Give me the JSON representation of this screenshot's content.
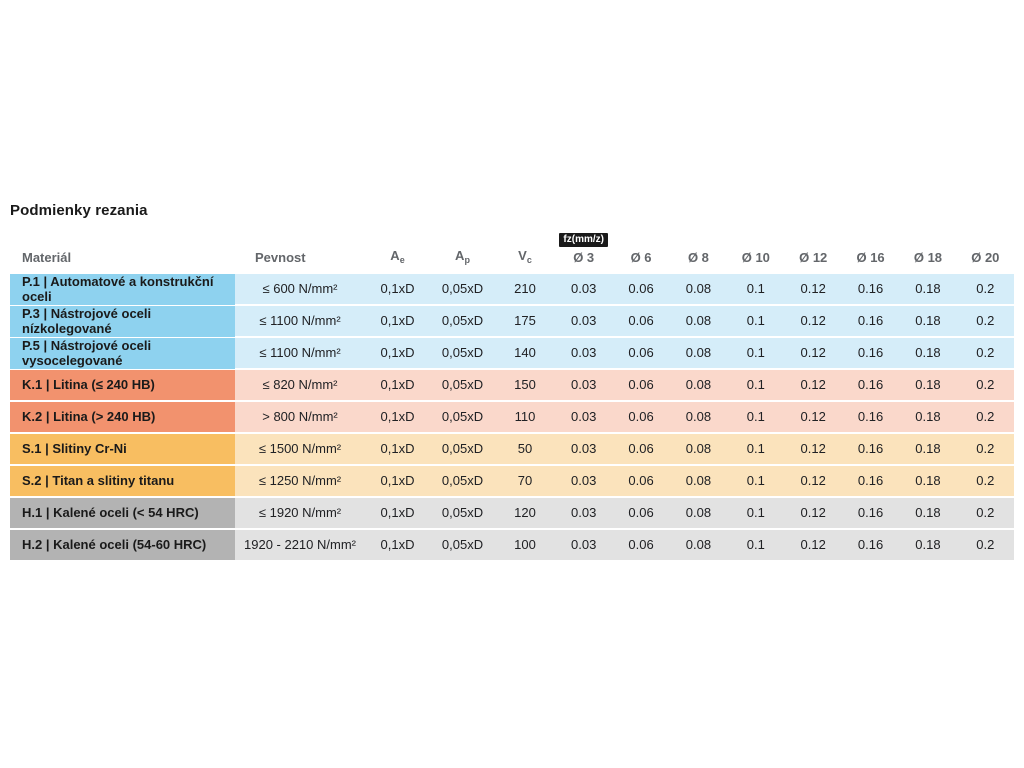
{
  "page": {
    "title": "Podmienky rezania"
  },
  "table": {
    "fz_badge": "fz(mm/z)",
    "columns": {
      "material": "Materiál",
      "pevnost": "Pevnost",
      "ae_base": "A",
      "ae_sub": "e",
      "ap_base": "A",
      "ap_sub": "p",
      "vc_base": "V",
      "vc_sub": "c",
      "diameters": [
        "Ø 3",
        "Ø 6",
        "Ø 8",
        "Ø 10",
        "Ø 12",
        "Ø 16",
        "Ø 18",
        "Ø 20"
      ]
    },
    "group_colors": {
      "P": {
        "label": "#8ED2EF",
        "row": "#D5EDF9"
      },
      "K": {
        "label": "#F2926E",
        "row": "#FAD8CB"
      },
      "S": {
        "label": "#F8BE61",
        "row": "#FBE3BC"
      },
      "H": {
        "label": "#B3B3B3",
        "row": "#E2E2E2"
      }
    },
    "rows": [
      {
        "group": "P",
        "material": "P.1 | Automatové a konstrukční oceli",
        "pevnost": "≤ 600 N/mm²",
        "ae": "0,1xD",
        "ap": "0,05xD",
        "vc": "210",
        "fz": [
          "0.03",
          "0.06",
          "0.08",
          "0.1",
          "0.12",
          "0.16",
          "0.18",
          "0.2"
        ]
      },
      {
        "group": "P",
        "material": "P.3 | Nástrojové oceli nízkolegované",
        "pevnost": "≤ 1100 N/mm²",
        "ae": "0,1xD",
        "ap": "0,05xD",
        "vc": "175",
        "fz": [
          "0.03",
          "0.06",
          "0.08",
          "0.1",
          "0.12",
          "0.16",
          "0.18",
          "0.2"
        ]
      },
      {
        "group": "P",
        "material": "P.5 | Nástrojové oceli vysocelegované",
        "pevnost": "≤ 1100 N/mm²",
        "ae": "0,1xD",
        "ap": "0,05xD",
        "vc": "140",
        "fz": [
          "0.03",
          "0.06",
          "0.08",
          "0.1",
          "0.12",
          "0.16",
          "0.18",
          "0.2"
        ]
      },
      {
        "group": "K",
        "material": "K.1 | Litina (≤ 240 HB)",
        "pevnost": "≤ 820 N/mm²",
        "ae": "0,1xD",
        "ap": "0,05xD",
        "vc": "150",
        "fz": [
          "0.03",
          "0.06",
          "0.08",
          "0.1",
          "0.12",
          "0.16",
          "0.18",
          "0.2"
        ]
      },
      {
        "group": "K",
        "material": "K.2 | Litina (> 240 HB)",
        "pevnost": "> 800 N/mm²",
        "ae": "0,1xD",
        "ap": "0,05xD",
        "vc": "110",
        "fz": [
          "0.03",
          "0.06",
          "0.08",
          "0.1",
          "0.12",
          "0.16",
          "0.18",
          "0.2"
        ]
      },
      {
        "group": "S",
        "material": "S.1 | Slitiny Cr-Ni",
        "pevnost": "≤ 1500 N/mm²",
        "ae": "0,1xD",
        "ap": "0,05xD",
        "vc": "50",
        "fz": [
          "0.03",
          "0.06",
          "0.08",
          "0.1",
          "0.12",
          "0.16",
          "0.18",
          "0.2"
        ]
      },
      {
        "group": "S",
        "material": "S.2 | Titan a slitiny titanu",
        "pevnost": "≤ 1250 N/mm²",
        "ae": "0,1xD",
        "ap": "0,05xD",
        "vc": "70",
        "fz": [
          "0.03",
          "0.06",
          "0.08",
          "0.1",
          "0.12",
          "0.16",
          "0.18",
          "0.2"
        ]
      },
      {
        "group": "H",
        "material": "H.1 | Kalené oceli (< 54 HRC)",
        "pevnost": "≤ 1920 N/mm²",
        "ae": "0,1xD",
        "ap": "0,05xD",
        "vc": "120",
        "fz": [
          "0.03",
          "0.06",
          "0.08",
          "0.1",
          "0.12",
          "0.16",
          "0.18",
          "0.2"
        ]
      },
      {
        "group": "H",
        "material": "H.2 | Kalené oceli (54-60 HRC)",
        "pevnost": "1920 - 2210 N/mm²",
        "ae": "0,1xD",
        "ap": "0,05xD",
        "vc": "100",
        "fz": [
          "0.03",
          "0.06",
          "0.08",
          "0.1",
          "0.12",
          "0.16",
          "0.18",
          "0.2"
        ]
      }
    ]
  }
}
